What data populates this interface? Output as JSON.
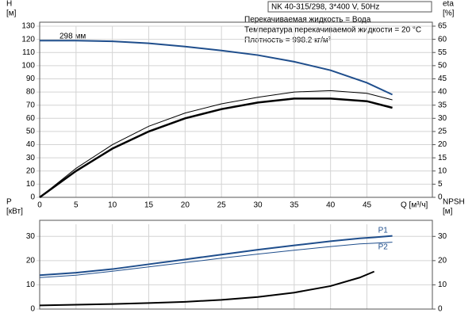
{
  "chart_data": [
    {
      "type": "line",
      "header": "NK 40-315/298, 3*400 V, 50Hz",
      "notes": [
        "Перекачиваемая жидкость = Вода",
        "Температура перекачиваемой жидкости = 20 °C",
        "Плотность = 998.2 кг/м³"
      ],
      "annotation": "298 мм",
      "ylabel": [
        "H",
        "[м]"
      ],
      "y2label": [
        "eta",
        "[%]"
      ],
      "xlabel": "Q [м³/ч]",
      "x": [
        0,
        5,
        10,
        15,
        20,
        25,
        30,
        35,
        40,
        45,
        48.5
      ],
      "series": [
        {
          "color": "#1f4e8c",
          "width": 2,
          "values": [
            119,
            119,
            118.5,
            117,
            114.5,
            111.5,
            108,
            103,
            96.5,
            87,
            78
          ]
        },
        {
          "color": "#000000",
          "width": 1,
          "axis": "y2",
          "values": [
            0,
            11,
            20,
            27,
            32,
            35.5,
            38,
            40,
            40.5,
            39.5,
            37
          ]
        },
        {
          "color": "#000000",
          "width": 2.5,
          "axis": "y2",
          "values": [
            0,
            10,
            18.5,
            25,
            30,
            33.5,
            36,
            37.5,
            37.5,
            36.5,
            34
          ]
        }
      ],
      "xlim": [
        0,
        54
      ],
      "xticks": [
        0,
        5,
        10,
        15,
        20,
        25,
        30,
        35,
        40,
        45
      ],
      "ylim": [
        0,
        130
      ],
      "yticks": [
        0,
        10,
        20,
        30,
        40,
        50,
        60,
        70,
        80,
        90,
        100,
        110,
        120,
        130
      ],
      "y2lim": [
        0,
        65
      ],
      "y2ticks": [
        0,
        5,
        10,
        15,
        20,
        25,
        30,
        35,
        40,
        45,
        50,
        55,
        60,
        65
      ],
      "grid": true
    },
    {
      "type": "line",
      "ylabel": [
        "P",
        "[кВт]"
      ],
      "y2label": [
        "NPSH",
        "[м]"
      ],
      "x": [
        0,
        5,
        10,
        15,
        20,
        25,
        30,
        35,
        40,
        44,
        46,
        48.5
      ],
      "series": [
        {
          "name": "P1",
          "color": "#1f4e8c",
          "width": 2,
          "values": [
            14,
            15,
            16.5,
            18.5,
            20.5,
            22.5,
            24.5,
            26.3,
            28,
            29.2,
            29.6,
            30.2
          ]
        },
        {
          "name": "P2",
          "color": "#1f4e8c",
          "width": 1,
          "values": [
            13,
            14,
            15.6,
            17.4,
            19.2,
            21,
            22.7,
            24.3,
            25.8,
            26.9,
            27.2,
            27.6
          ]
        },
        {
          "color": "#000000",
          "width": 2,
          "axis": "y2",
          "values": [
            1.5,
            1.8,
            2.1,
            2.5,
            3,
            3.8,
            5,
            6.8,
            9.5,
            13,
            15.5,
            null
          ]
        }
      ],
      "xlim": [
        0,
        54
      ],
      "xticks": [
        0,
        5,
        10,
        15,
        20,
        25,
        30,
        35,
        40,
        45
      ],
      "ylim": [
        0,
        35
      ],
      "yticks": [
        0,
        10,
        20,
        30
      ],
      "y2lim": [
        0,
        35
      ],
      "y2ticks": [
        0,
        10,
        20,
        30
      ],
      "grid": true
    }
  ]
}
